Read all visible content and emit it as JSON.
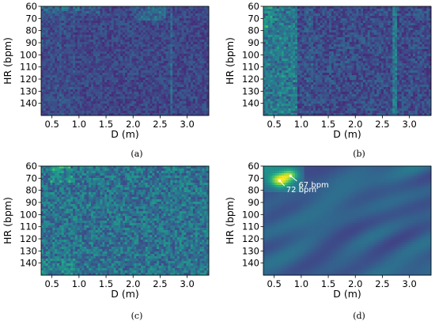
{
  "chart_data": [
    {
      "type": "heatmap",
      "caption": "(a)",
      "xlabel": "D (m)",
      "ylabel": "HR (bpm)",
      "xlim": [
        0.3,
        3.4
      ],
      "ylim": [
        150,
        60
      ],
      "xticks": [
        "0.5",
        "1.0",
        "1.5",
        "2.0",
        "2.5",
        "3.0"
      ],
      "yticks": [
        "60",
        "70",
        "80",
        "90",
        "100",
        "110",
        "120",
        "130",
        "140"
      ],
      "colormap": "viridis",
      "annotations": []
    },
    {
      "type": "heatmap",
      "caption": "(b)",
      "xlabel": "D (m)",
      "ylabel": "HR (bpm)",
      "xlim": [
        0.3,
        3.4
      ],
      "ylim": [
        150,
        60
      ],
      "xticks": [
        "0.5",
        "1.0",
        "1.5",
        "2.0",
        "2.5",
        "3.0"
      ],
      "yticks": [
        "60",
        "70",
        "80",
        "90",
        "100",
        "110",
        "120",
        "130",
        "140"
      ],
      "colormap": "viridis",
      "annotations": []
    },
    {
      "type": "heatmap",
      "caption": "(c)",
      "xlabel": "D (m)",
      "ylabel": "HR (bpm)",
      "xlim": [
        0.3,
        3.4
      ],
      "ylim": [
        150,
        60
      ],
      "xticks": [
        "0.5",
        "1.0",
        "1.5",
        "2.0",
        "2.5",
        "3.0"
      ],
      "yticks": [
        "60",
        "70",
        "80",
        "90",
        "100",
        "110",
        "120",
        "130",
        "140"
      ],
      "colormap": "viridis",
      "annotations": []
    },
    {
      "type": "heatmap",
      "caption": "(d)",
      "xlabel": "D (m)",
      "ylabel": "HR (bpm)",
      "xlim": [
        0.3,
        3.4
      ],
      "ylim": [
        150,
        60
      ],
      "xticks": [
        "0.5",
        "1.0",
        "1.5",
        "2.0",
        "2.5",
        "3.0"
      ],
      "yticks": [
        "60",
        "70",
        "80",
        "90",
        "100",
        "110",
        "120",
        "130",
        "140"
      ],
      "colormap": "viridis",
      "annotations": [
        {
          "label": "67 bpm",
          "x": 0.8,
          "y": 68,
          "text_x": 0.95,
          "text_y": 75,
          "color": "#ffffff"
        },
        {
          "label": "72 bpm",
          "x": 0.6,
          "y": 72,
          "text_x": 0.72,
          "text_y": 79,
          "color": "#ffffff"
        }
      ]
    }
  ]
}
